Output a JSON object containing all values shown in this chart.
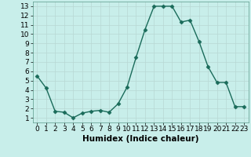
{
  "x": [
    0,
    1,
    2,
    3,
    4,
    5,
    6,
    7,
    8,
    9,
    10,
    11,
    12,
    13,
    14,
    15,
    16,
    17,
    18,
    19,
    20,
    21,
    22,
    23
  ],
  "y": [
    5.5,
    4.2,
    1.7,
    1.6,
    1.0,
    1.5,
    1.7,
    1.8,
    1.6,
    2.5,
    4.3,
    7.5,
    10.5,
    13.0,
    13.0,
    13.0,
    11.3,
    11.5,
    9.2,
    6.5,
    4.8,
    4.8,
    2.2,
    2.2
  ],
  "line_color": "#1a6b5a",
  "marker": "D",
  "markersize": 2.5,
  "linewidth": 1.0,
  "bg_color": "#c8eeea",
  "grid_color_major": "#b8d8d4",
  "grid_color_minor": "#d0e8e4",
  "xlabel": "Humidex (Indice chaleur)",
  "xlabel_fontsize": 7.5,
  "xlim": [
    -0.5,
    23.5
  ],
  "ylim": [
    0.5,
    13.5
  ],
  "yticks": [
    1,
    2,
    3,
    4,
    5,
    6,
    7,
    8,
    9,
    10,
    11,
    12,
    13
  ],
  "xticks": [
    0,
    1,
    2,
    3,
    4,
    5,
    6,
    7,
    8,
    9,
    10,
    11,
    12,
    13,
    14,
    15,
    16,
    17,
    18,
    19,
    20,
    21,
    22,
    23
  ],
  "tick_fontsize": 6.5,
  "spine_color": "#5a9a8a"
}
